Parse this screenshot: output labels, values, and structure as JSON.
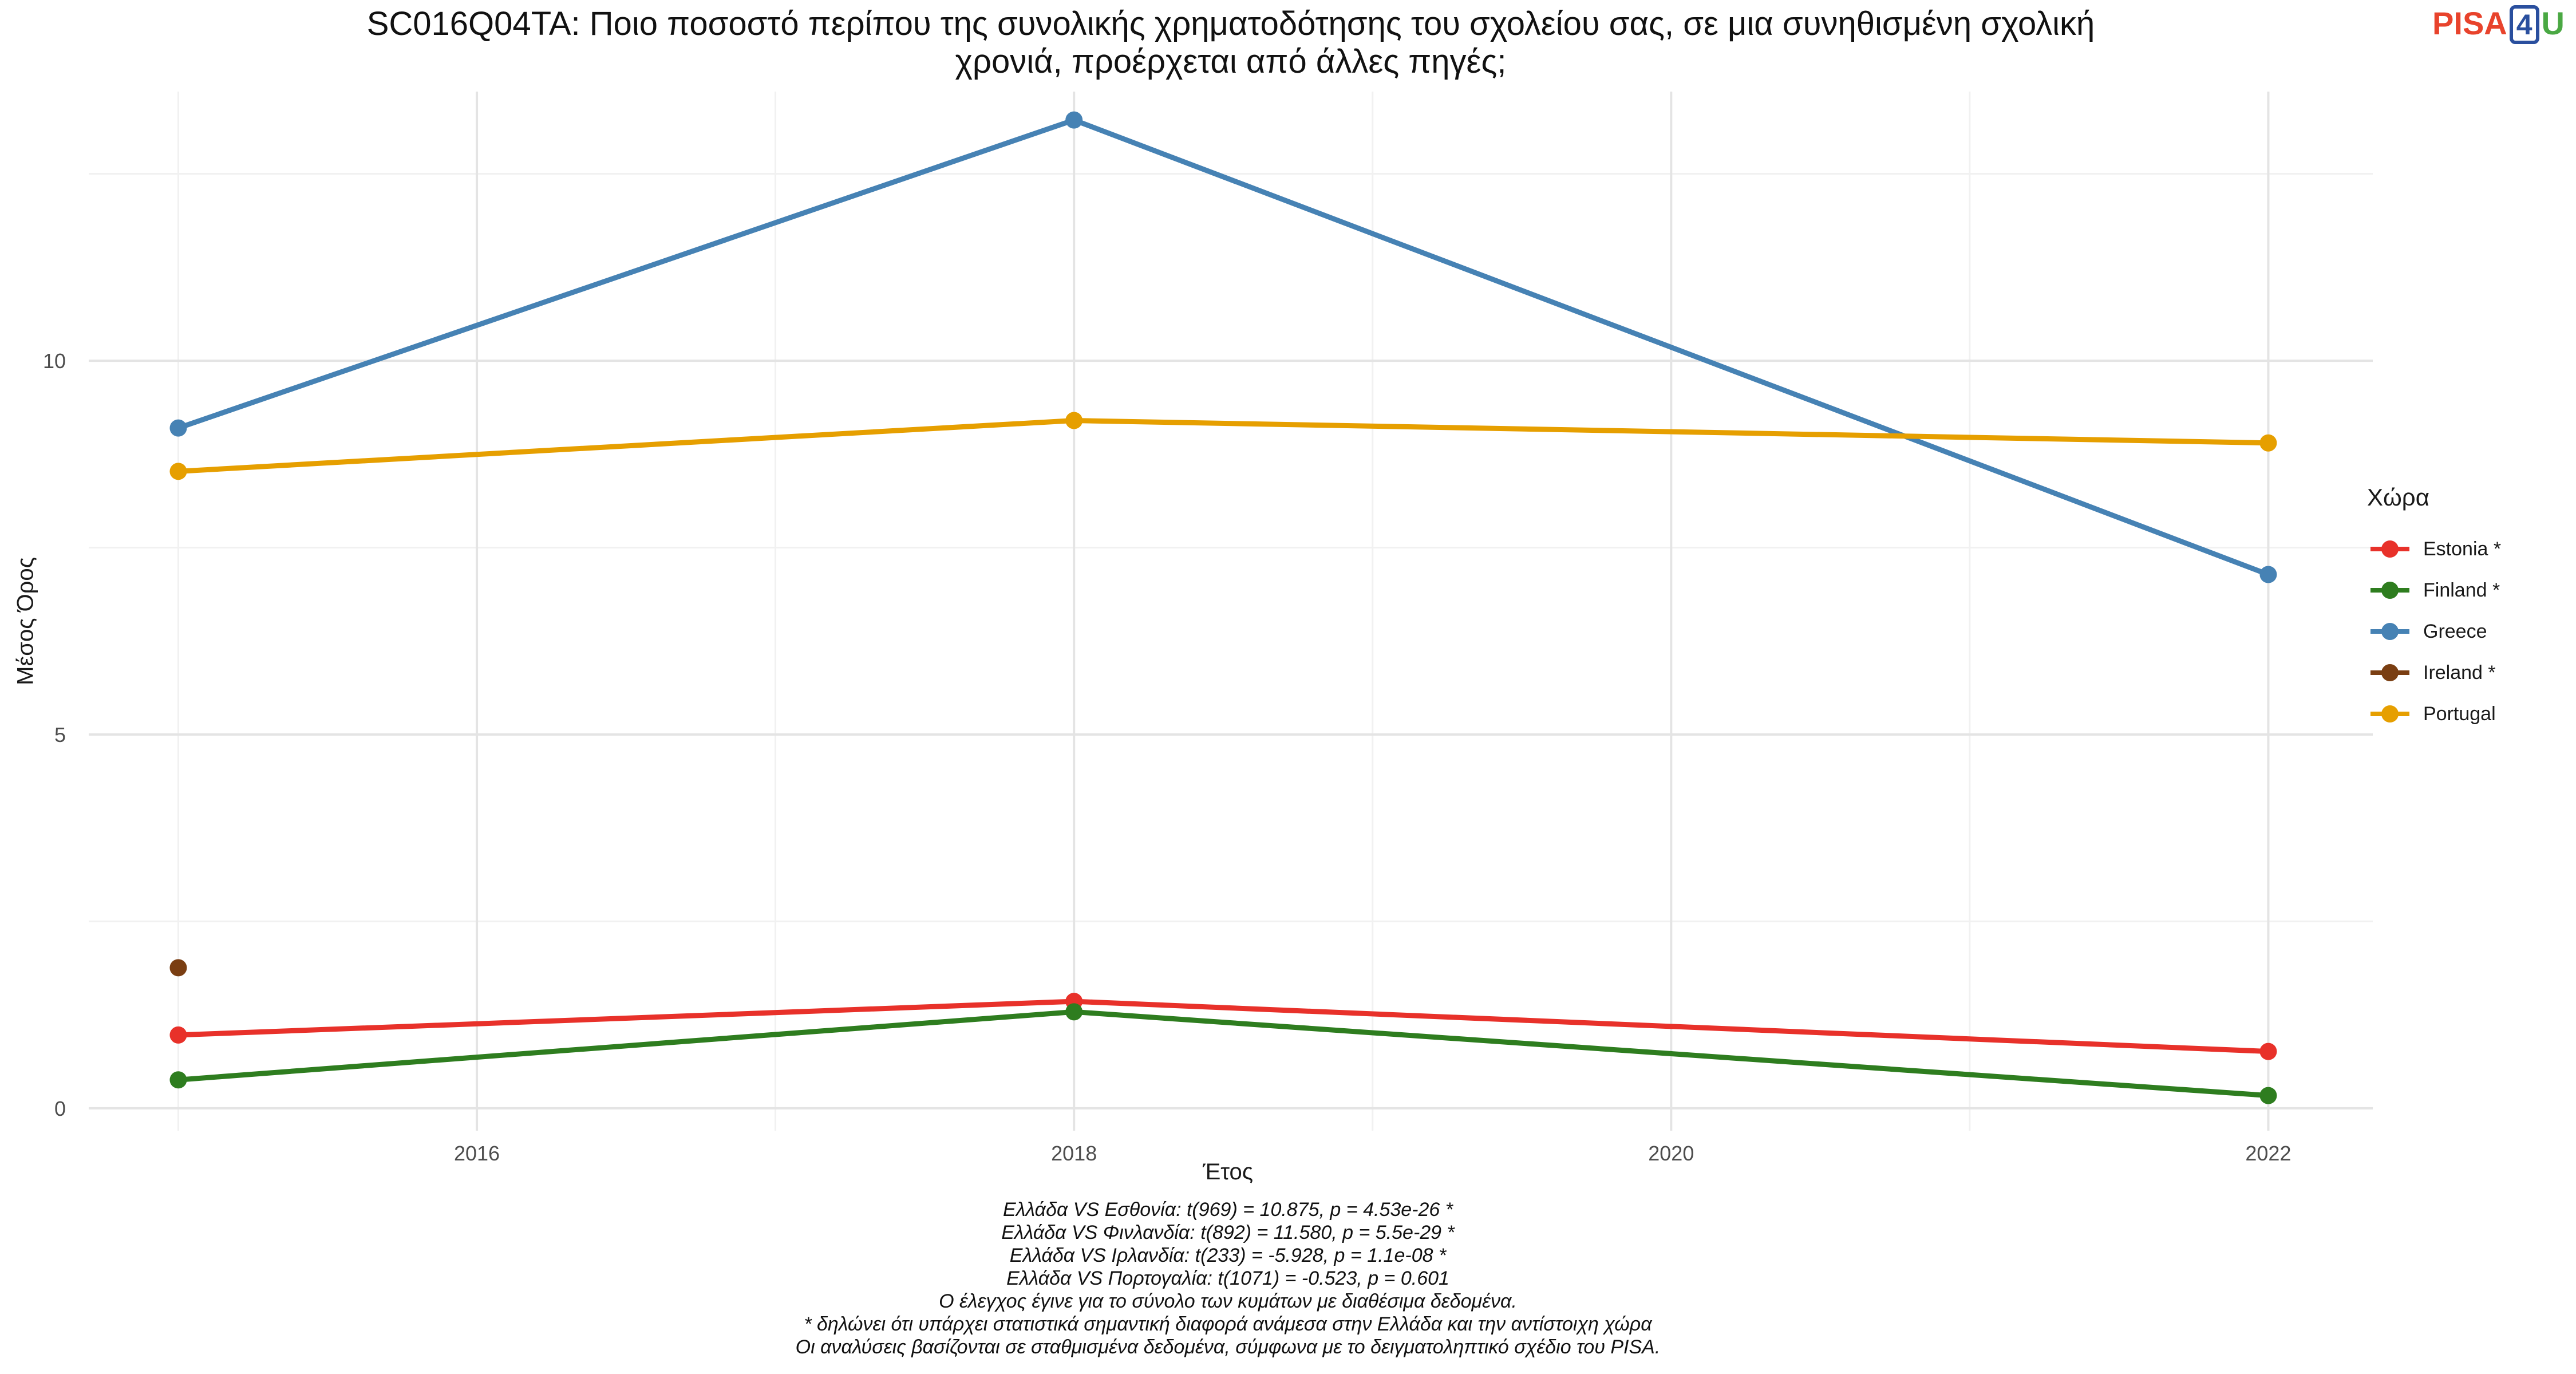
{
  "title": {
    "line1": "SC016Q04TA: Ποιο ποσοστό περίπου της συνολικής χρηματοδότησης του σχολείου σας, σε μια συνηθισμένη σχολική",
    "line2": "χρονιά, προέρχεται από άλλες πηγές;"
  },
  "logo": {
    "pisa": "PISA",
    "four": "4",
    "u": "U"
  },
  "chart_data": {
    "type": "line",
    "xlabel": "Έτος",
    "ylabel": "Μέσος Όρος",
    "xlim": [
      2014.7,
      2022.35
    ],
    "ylim": [
      -0.3,
      13.6
    ],
    "x_ticks": [
      2016,
      2018,
      2020,
      2022
    ],
    "y_ticks": [
      0,
      5,
      10
    ],
    "grid": true,
    "legend_title": "Χώρα",
    "legend_position": "right",
    "series": [
      {
        "name": "Estonia *",
        "color": "#e8312a",
        "points": [
          [
            2015,
            0.98
          ],
          [
            2018,
            1.43
          ],
          [
            2022,
            0.76
          ]
        ]
      },
      {
        "name": "Finland *",
        "color": "#2e7d1f",
        "points": [
          [
            2015,
            0.38
          ],
          [
            2018,
            1.29
          ],
          [
            2022,
            0.17
          ]
        ]
      },
      {
        "name": "Greece",
        "color": "#4682b4",
        "points": [
          [
            2015,
            9.1
          ],
          [
            2018,
            13.22
          ],
          [
            2022,
            7.14
          ]
        ]
      },
      {
        "name": "Ireland *",
        "color": "#7a3e12",
        "points": [
          [
            2015,
            1.88
          ]
        ]
      },
      {
        "name": "Portugal",
        "color": "#e69f00",
        "points": [
          [
            2015,
            8.52
          ],
          [
            2018,
            9.2
          ],
          [
            2022,
            8.9
          ]
        ]
      }
    ]
  },
  "notes": [
    "Ελλάδα VS Εσθονία: t(969) = 10.875, p = 4.53e-26 *",
    "Ελλάδα VS Φινλανδία: t(892) = 11.580, p = 5.5e-29 *",
    "Ελλάδα VS Ιρλανδία: t(233) = -5.928, p = 1.1e-08 *",
    "Ελλάδα VS Πορτογαλία: t(1071) = -0.523, p = 0.601",
    "Ο έλεγχος έγινε για το σύνολο των κυμάτων με διαθέσιμα δεδομένα.",
    "* δηλώνει ότι υπάρχει στατιστικά σημαντική διαφορά ανάμεσα στην Ελλάδα και την αντίστοιχη χώρα",
    "Οι αναλύσεις βασίζονται σε σταθμισμένα δεδομένα, σύμφωνα με το δειγματοληπτικό σχέδιο του PISA."
  ]
}
